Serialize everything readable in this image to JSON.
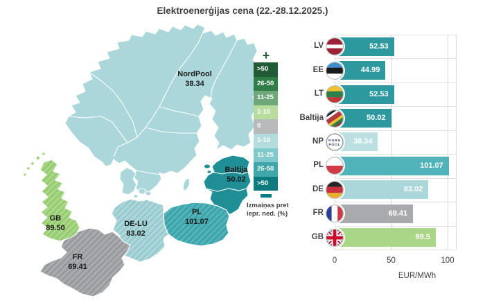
{
  "chart_data": {
    "type": "bar",
    "orientation": "horizontal",
    "title": "Elektroenerģijas cena (22.-28.12.2025.)",
    "categories": [
      "LV",
      "EE",
      "LT",
      "Baltija",
      "NP",
      "PL",
      "DE",
      "FR",
      "GB"
    ],
    "values": [
      52.53,
      44.99,
      52.53,
      50.02,
      38.34,
      101.07,
      83.02,
      69.41,
      89.5
    ],
    "value_labels": [
      "52.53",
      "44.99",
      "52.53",
      "50.02",
      "38.34",
      "101.07",
      "83.02",
      "69.41",
      "89.5"
    ],
    "flags": [
      "lv",
      "ee",
      "lt",
      "baltija",
      "np",
      "pl",
      "de",
      "fr",
      "gb"
    ],
    "bar_colors": [
      "#2D989D",
      "#2D989D",
      "#2D989D",
      "#2D989D",
      "#BCDFE1",
      "#4FB3B9",
      "#ABD7DA",
      "#A8AAAD",
      "#A9D687"
    ],
    "xlabel": "EUR/MWh",
    "xticks": [
      "0",
      "50",
      "100"
    ],
    "xtick_values": [
      0,
      50,
      100
    ],
    "xlim": [
      0,
      107
    ],
    "grid": true,
    "legend_position": "none"
  },
  "map": {
    "regions": [
      {
        "id": "nordpool",
        "label": "NordPool",
        "value": "38.34",
        "fill": "#ABD7DA",
        "hatched": false
      },
      {
        "id": "baltija",
        "label": "Baltija",
        "value": "50.02",
        "fill": "#1F8E95",
        "hatched": false
      },
      {
        "id": "pl",
        "label": "PL",
        "value": "101.07",
        "fill": "#4FB3B9",
        "hatched": true
      },
      {
        "id": "de-lu",
        "label": "DE-LU",
        "value": "83.02",
        "fill": "#ABD7DA",
        "hatched": true
      },
      {
        "id": "fr",
        "label": "FR",
        "value": "69.41",
        "fill": "#A8AAAD",
        "hatched": true
      },
      {
        "id": "gb",
        "label": "GB",
        "value": "89.50",
        "fill": "#A9D687",
        "hatched": true
      }
    ],
    "legend": {
      "plus": "+",
      "minus": "−",
      "items": [
        {
          "label": ">50",
          "color": "#215C36"
        },
        {
          "label": "26-50",
          "color": "#2F7E48"
        },
        {
          "label": "11-25",
          "color": "#6FA878"
        },
        {
          "label": "1-10",
          "color": "#B7DC9E"
        },
        {
          "label": "0",
          "color": "#B7B9BB"
        },
        {
          "label": "1-10",
          "color": "#B4DBDD"
        },
        {
          "label": "11-25",
          "color": "#7FC9CC"
        },
        {
          "label": "26-50",
          "color": "#3FA6AB"
        },
        {
          "label": ">50",
          "color": "#0D7A80"
        }
      ],
      "caption_line1": "Izmaiņas pret",
      "caption_line2": "iepr. ned. (%)"
    }
  }
}
